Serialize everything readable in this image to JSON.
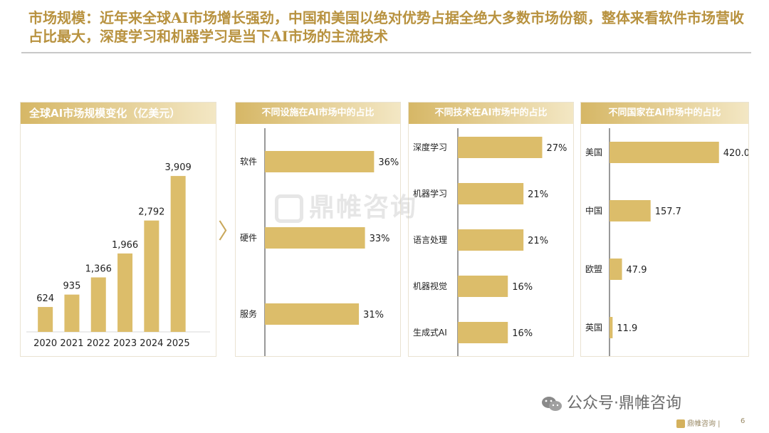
{
  "header": {
    "title": "市场规模：近年来全球AI市场增长强劲，中国和美国以绝对优势占据全绝大多数市场份额，整体来看软件市场营收占比最大，深度学习和机器学习是当下AI市场的主流技术"
  },
  "watermark": {
    "text": "鼎帷咨询"
  },
  "footer": {
    "social": "公众号·鼎帷咨询",
    "brand": "鼎帷咨询",
    "page": "6"
  },
  "colors": {
    "bar": "#dcbd6a",
    "header_start": "#d6b766",
    "header_end": "#f3e7c4",
    "title": "#b8923f"
  },
  "chart_data": [
    {
      "type": "bar",
      "title": "全球AI市场规模变化（亿美元）",
      "categories": [
        "2020",
        "2021",
        "2022",
        "2023",
        "2024",
        "2025"
      ],
      "values": [
        624,
        935,
        1366,
        1966,
        2792,
        3909
      ],
      "value_labels": [
        "624",
        "935",
        "1,366",
        "1,966",
        "2,792",
        "3,909"
      ],
      "ylim": [
        0,
        4500
      ]
    },
    {
      "type": "bar",
      "orientation": "horizontal",
      "title": "不同设施在AI市场中的占比",
      "categories": [
        "软件",
        "硬件",
        "服务"
      ],
      "values": [
        36,
        33,
        31
      ],
      "value_labels": [
        "36%",
        "33%",
        "31%"
      ],
      "xlim": [
        0,
        50
      ]
    },
    {
      "type": "bar",
      "orientation": "horizontal",
      "title": "不同技术在AI市场中的占比",
      "categories": [
        "深度学习",
        "机器学习",
        "语言处理",
        "机器视觉",
        "生成式AI"
      ],
      "values": [
        27,
        21,
        21,
        16,
        16
      ],
      "value_labels": [
        "27%",
        "21%",
        "21%",
        "16%",
        "16%"
      ],
      "xlim": [
        0,
        36
      ]
    },
    {
      "type": "bar",
      "orientation": "horizontal",
      "title": "不同国家在AI市场中的占比",
      "categories": [
        "美国",
        "中国",
        "欧盟",
        "英国"
      ],
      "values": [
        420.0,
        157.7,
        47.9,
        11.9
      ],
      "value_labels": [
        "420.0",
        "157.7",
        "47.9",
        "11.9"
      ],
      "xlim": [
        0,
        560
      ]
    }
  ]
}
